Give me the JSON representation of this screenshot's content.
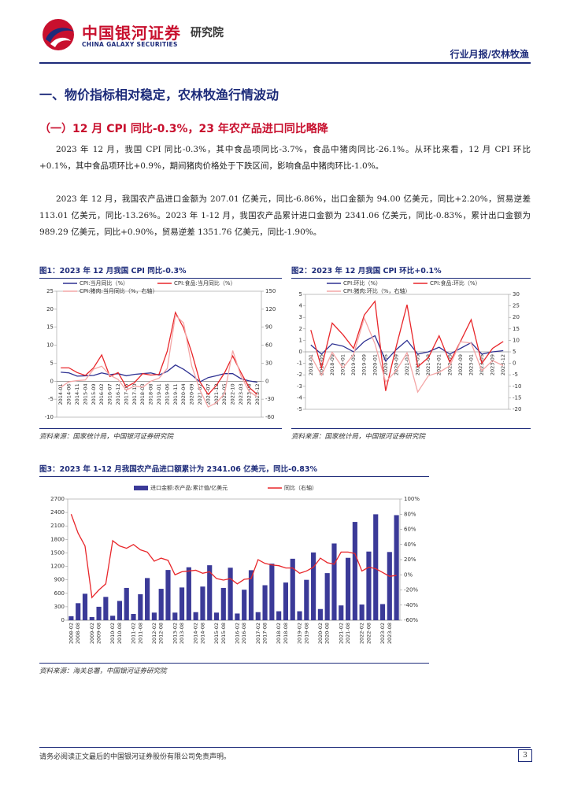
{
  "header": {
    "logo_cn": "中国银河证券",
    "logo_en": "CHINA GALAXY SECURITIES",
    "institute": "研究院",
    "report_type": "行业月报/农林牧渔"
  },
  "section_title": "一、物价指标相对稳定，农林牧渔行情波动",
  "subsection_title": "（一）12 月 CPI 同比-0.3%，23 年农产品进口同比略降",
  "paragraphs": [
    "2023 年 12 月，我国 CPI 同比-0.3%，其中食品项同比-3.7%，食品中猪肉同比-26.1%。从环比来看，12 月 CPI 环比+0.1%，其中食品项环比+0.9%，期间猪肉价格处于下跌区间，影响食品中猪肉环比-1.0%。",
    "2023 年 12 月，我国农产品进口金额为 207.01 亿美元，同比-6.86%，出口金额为 94.00 亿美元，同比+2.20%，贸易逆差 113.01 亿美元，同比-13.26%。2023 年 1-12 月，我国农产品累计进口金额为 2341.06 亿美元，同比-0.83%，累计出口金额为 989.29 亿美元，同比+0.90%，贸易逆差 1351.76 亿美元，同比-1.90%。"
  ],
  "chart_data": [
    {
      "type": "line",
      "title": "图1：2023 年 12 月我国 CPI 同比-0.3%",
      "source": "资料来源：国家统计局，中国银河证券研究院",
      "categories": [
        "2014-01",
        "2014-06",
        "2014-11",
        "2015-04",
        "2015-09",
        "2016-02",
        "2016-07",
        "2016-12",
        "2017-05",
        "2017-10",
        "2018-03",
        "2018-08",
        "2019-01",
        "2019-06",
        "2019-11",
        "2020-04",
        "2020-09",
        "2021-02",
        "2021-07",
        "2021-12",
        "2022-05",
        "2022-10",
        "2023-03",
        "2023-08",
        "2023-12"
      ],
      "series": [
        {
          "name": "CPI:当月同比（%）",
          "color": "#2e3192",
          "values": [
            2.5,
            2.3,
            1.4,
            1.5,
            1.6,
            2.3,
            1.8,
            2.1,
            1.5,
            1.9,
            2.1,
            2.3,
            1.7,
            2.7,
            4.5,
            3.3,
            1.7,
            -0.2,
            1.0,
            1.5,
            2.1,
            2.1,
            0.7,
            0.1,
            -0.3
          ]
        },
        {
          "name": "CPI:食品:当月同比（%）",
          "color": "#e8262a",
          "values": [
            3.7,
            3.7,
            2.4,
            1.6,
            3.7,
            7.3,
            1.3,
            2.4,
            -1.6,
            -0.4,
            2.1,
            1.7,
            1.9,
            8.3,
            19.1,
            14.8,
            7.9,
            -0.2,
            -3.7,
            -1.2,
            2.3,
            7.0,
            2.4,
            -1.7,
            -3.7
          ]
        },
        {
          "name": "CPI:猪肉:当月同比（%，右轴）",
          "color": "#f4a6a6",
          "axis": "y2",
          "values": [
            -10,
            -1,
            1,
            2,
            20,
            25,
            10,
            3,
            -15,
            -8,
            -10,
            0,
            5,
            21,
            110,
            97,
            25,
            -15,
            -43,
            -36,
            -21,
            51,
            9,
            -17,
            -26.1
          ]
        }
      ],
      "ylim": [
        -10,
        25
      ],
      "yticks": [
        -10,
        -5,
        0,
        5,
        10,
        15,
        20,
        25
      ],
      "y2lim": [
        -60,
        150
      ],
      "y2ticks": [
        -60,
        -30,
        0,
        30,
        60,
        90,
        120,
        150
      ],
      "legend": "top"
    },
    {
      "type": "line",
      "title": "图2：2023 年 12 月我国 CPI 环比+0.1%",
      "source": "资料来源：国家统计局，中国银河证券研究院",
      "categories": [
        "2018-01",
        "2018-05",
        "2018-09",
        "2019-01",
        "2019-05",
        "2019-09",
        "2020-01",
        "2020-05",
        "2020-09",
        "2021-01",
        "2021-05",
        "2021-09",
        "2022-01",
        "2022-05",
        "2022-09",
        "2023-01",
        "2023-05",
        "2023-09",
        "2023-12"
      ],
      "series": [
        {
          "name": "CPI:环比（%）",
          "color": "#2e3192",
          "values": [
            0.6,
            -0.2,
            0.7,
            0.5,
            0,
            0.9,
            1.4,
            -0.8,
            0.2,
            1.0,
            -0.2,
            0,
            0.4,
            -0.2,
            0.3,
            0.8,
            -0.2,
            0,
            0.1
          ]
        },
        {
          "name": "CPI:食品:环比（%）",
          "color": "#e8262a",
          "values": [
            1.9,
            -1.4,
            2.5,
            1.5,
            0.3,
            3.2,
            4.4,
            -3.4,
            0.5,
            4.1,
            -1.3,
            -0.5,
            1.4,
            -0.9,
            0.9,
            2.8,
            -1.0,
            0.3,
            0.9
          ]
        },
        {
          "name": "CPI:猪肉:环比（%，右轴）",
          "color": "#f4a6a6",
          "axis": "y2",
          "values": [
            3.3,
            -5.2,
            4.8,
            -2.0,
            3.9,
            19.7,
            8.5,
            -8.1,
            -3.1,
            4.6,
            -12.5,
            -5.4,
            -3.9,
            -1.1,
            9.4,
            8.8,
            -3.2,
            1.2,
            -1.0
          ]
        }
      ],
      "ylim": [
        -5,
        5
      ],
      "yticks": [
        -5,
        -4,
        -3,
        -2,
        -1,
        0,
        1,
        2,
        3,
        4,
        5
      ],
      "y2lim": [
        -20,
        30
      ],
      "y2ticks": [
        -20,
        -15,
        -10,
        -5,
        0,
        5,
        10,
        15,
        20,
        25,
        30
      ],
      "legend": "top"
    },
    {
      "type": "bar",
      "title": "图3：2023 年 1-12 月我国农产品进口额累计为 2341.06 亿美元，同比-0.83%",
      "source": "资料来源：海关总署，中国银河证券研究院",
      "categories": [
        "2008-02",
        "2008-08",
        null,
        "2009-02",
        "2009-08",
        null,
        "2010-02",
        "2010-08",
        null,
        "2011-02",
        "2011-08",
        null,
        "2012-02",
        "2012-08",
        null,
        "2013-02",
        "2013-08",
        null,
        "2014-02",
        "2014-08",
        null,
        "2015-02",
        "2015-08",
        null,
        "2016-02",
        "2016-08",
        null,
        "2017-02",
        "2017-08",
        null,
        "2018-02",
        "2018-08",
        null,
        "2019-02",
        "2019-08",
        null,
        "2020-02",
        "2020-08",
        null,
        "2021-02",
        "2021-08",
        null,
        "2022-02",
        "2022-08",
        null,
        "2023-02",
        "2023-08",
        null
      ],
      "series": [
        {
          "name": "进口金额:农产品:累计值/亿美元",
          "color": "#3b3a98",
          "values": [
            90,
            380,
            590,
            70,
            300,
            520,
            100,
            430,
            720,
            140,
            580,
            940,
            170,
            700,
            1120,
            170,
            730,
            1180,
            180,
            750,
            1225,
            170,
            720,
            1170,
            150,
            680,
            1115,
            180,
            780,
            1260,
            200,
            840,
            1370,
            200,
            900,
            1510,
            250,
            1050,
            1710,
            330,
            1390,
            2190,
            350,
            1530,
            2360,
            360,
            1520,
            2341.06
          ]
        },
        {
          "name": "同比（右轴）",
          "color": "#e8262a",
          "type": "line",
          "axis": "y2",
          "values": [
            80,
            55,
            38,
            -30,
            -20,
            -12,
            45,
            38,
            35,
            40,
            33,
            30,
            18,
            22,
            19,
            0,
            4,
            5,
            6,
            2,
            4,
            -5,
            -7,
            -5,
            -12,
            -6,
            -5,
            20,
            15,
            13,
            12,
            9,
            9,
            2,
            5,
            10,
            22,
            16,
            14,
            30,
            30,
            28,
            5,
            10,
            8,
            3,
            -2,
            -0.83
          ]
        }
      ],
      "ylim": [
        0,
        2700
      ],
      "yticks": [
        0,
        300,
        600,
        900,
        1200,
        1500,
        1800,
        2100,
        2400,
        2700
      ],
      "y2lim": [
        -60,
        100
      ],
      "y2ticks": [
        {
          "value": -60,
          "label": "-60%"
        },
        {
          "value": -40,
          "label": "-40%"
        },
        {
          "value": -20,
          "label": "-20%"
        },
        {
          "value": 0,
          "label": "0%"
        },
        {
          "value": 20,
          "label": "20%"
        },
        {
          "value": 40,
          "label": "40%"
        },
        {
          "value": 60,
          "label": "60%"
        },
        {
          "value": 80,
          "label": "80%"
        },
        {
          "value": 100,
          "label": "100%"
        }
      ],
      "legend": "top"
    }
  ],
  "footer": {
    "disclaimer": "请务必阅读正文最后的中国银河证券股份有限公司免责声明。",
    "page": "3"
  }
}
